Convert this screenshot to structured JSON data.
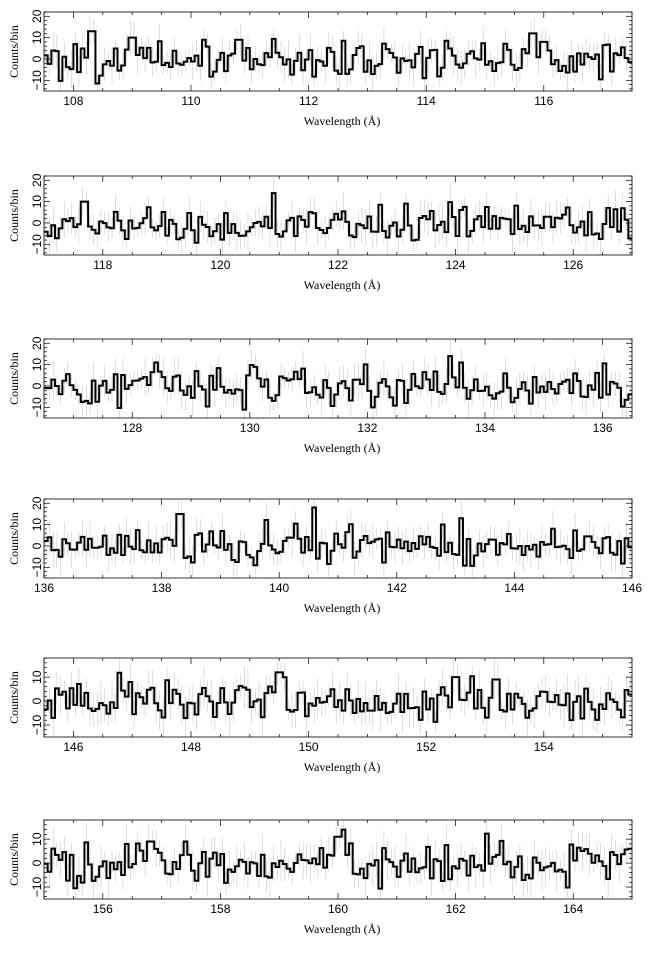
{
  "chart_data": [
    {
      "type": "line",
      "style": "step",
      "xlabel": "Wavelength (Å)",
      "ylabel": "Counts/bin",
      "xlim": [
        107.5,
        117.5
      ],
      "ylim": [
        -15,
        22
      ],
      "xticks": [
        108,
        110,
        112,
        114,
        116
      ],
      "yticks": [
        -10,
        0,
        10,
        20
      ],
      "ytick_labels": [
        "−10",
        "0",
        "10",
        "20"
      ],
      "error_bars": true,
      "bin_width": 0.0625,
      "seed": 101,
      "peaks": [
        [
          108.3,
          13
        ],
        [
          109.0,
          10
        ],
        [
          110.8,
          9
        ],
        [
          115.8,
          12
        ],
        [
          116.0,
          8
        ]
      ]
    },
    {
      "type": "line",
      "style": "step",
      "xlabel": "Wavelength (Å)",
      "ylabel": "Counts/bin",
      "xlim": [
        117,
        127
      ],
      "ylim": [
        -15,
        22
      ],
      "xticks": [
        118,
        120,
        122,
        124,
        126
      ],
      "yticks": [
        -10,
        0,
        10,
        20
      ],
      "ytick_labels": [
        "−10",
        "0",
        "10",
        "20"
      ],
      "error_bars": true,
      "bin_width": 0.0625,
      "seed": 202,
      "peaks": [
        [
          117.7,
          10
        ],
        [
          120.9,
          14
        ],
        [
          126.6,
          7
        ]
      ]
    },
    {
      "type": "line",
      "style": "step",
      "xlabel": "Wavelength (Å)",
      "ylabel": "Counts/bin",
      "xlim": [
        126.5,
        136.5
      ],
      "ylim": [
        -15,
        22
      ],
      "xticks": [
        128,
        130,
        132,
        134,
        136
      ],
      "yticks": [
        -10,
        0,
        10,
        20
      ],
      "ytick_labels": [
        "−10",
        "0",
        "10",
        "20"
      ],
      "error_bars": true,
      "bin_width": 0.0625,
      "seed": 303,
      "peaks": [
        [
          128.4,
          11
        ],
        [
          133.4,
          14
        ],
        [
          133.6,
          11
        ]
      ]
    },
    {
      "type": "line",
      "style": "step",
      "xlabel": "Wavelength (Å)",
      "ylabel": "Counts/bin",
      "xlim": [
        136,
        146
      ],
      "ylim": [
        -15,
        22
      ],
      "xticks": [
        136,
        138,
        140,
        142,
        144,
        146
      ],
      "yticks": [
        -10,
        0,
        10,
        20
      ],
      "ytick_labels": [
        "−10",
        "0",
        "10",
        "20"
      ],
      "error_bars": true,
      "bin_width": 0.0625,
      "seed": 404,
      "peaks": [
        [
          138.3,
          15
        ],
        [
          140.6,
          18
        ],
        [
          143.1,
          13
        ]
      ]
    },
    {
      "type": "line",
      "style": "step",
      "xlabel": "Wavelength (Å)",
      "ylabel": "Counts/bin",
      "xlim": [
        145.5,
        155.5
      ],
      "ylim": [
        -15,
        18
      ],
      "xticks": [
        146,
        148,
        150,
        152,
        154
      ],
      "yticks": [
        -10,
        0,
        10
      ],
      "ytick_labels": [
        "−10",
        "0",
        "10"
      ],
      "error_bars": true,
      "bin_width": 0.0625,
      "seed": 505,
      "peaks": [
        [
          149.5,
          12
        ],
        [
          152.5,
          10
        ],
        [
          153.2,
          9
        ]
      ]
    },
    {
      "type": "line",
      "style": "step",
      "xlabel": "Wavelength (Å)",
      "ylabel": "Counts/bin",
      "xlim": [
        155,
        165
      ],
      "ylim": [
        -15,
        18
      ],
      "xticks": [
        156,
        158,
        160,
        162,
        164
      ],
      "yticks": [
        -10,
        0,
        10
      ],
      "ytick_labels": [
        "−10",
        "0",
        "10"
      ],
      "error_bars": true,
      "bin_width": 0.0625,
      "seed": 606,
      "peaks": [
        [
          156.8,
          9
        ],
        [
          157.4,
          9
        ],
        [
          160.1,
          14
        ],
        [
          160.0,
          11
        ]
      ]
    }
  ]
}
